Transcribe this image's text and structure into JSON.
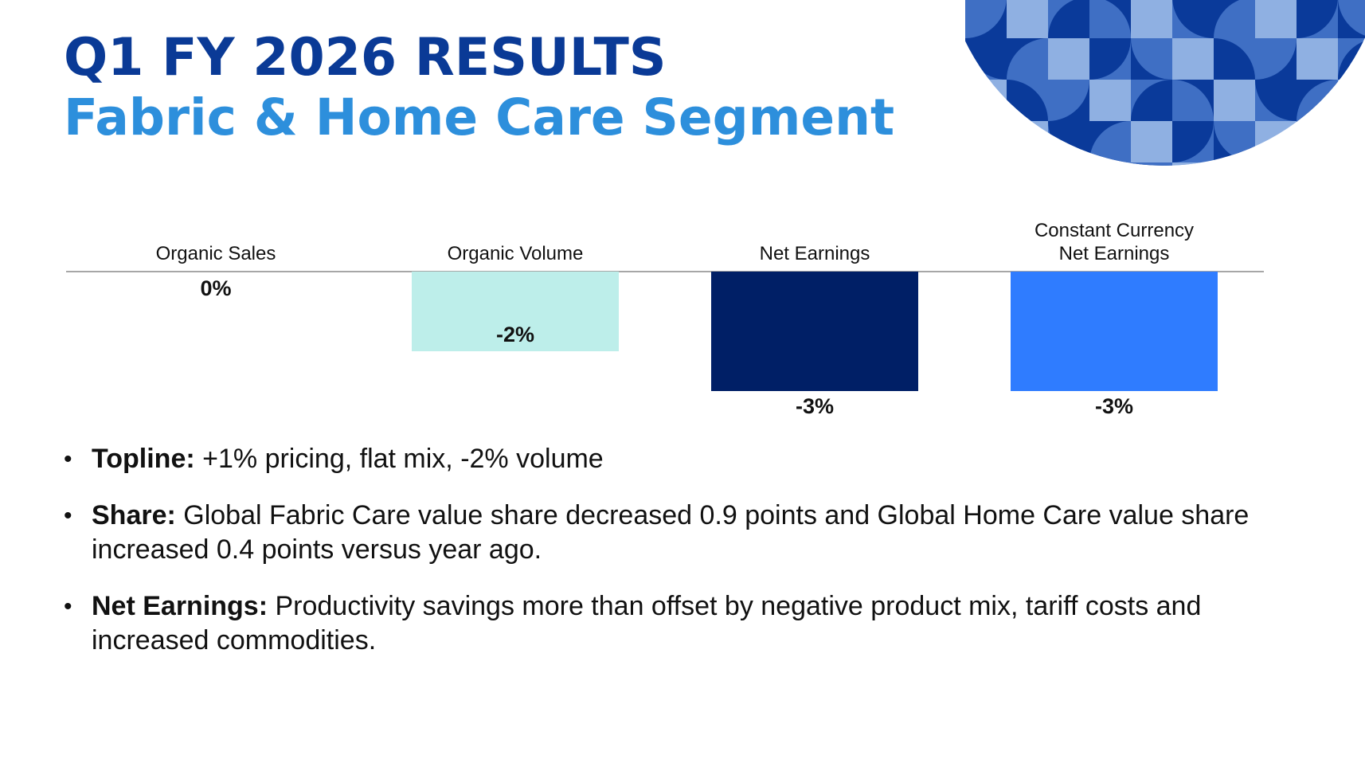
{
  "slide": {
    "title": "Q1 FY 2026 RESULTS",
    "subtitle": "Fabric & Home Care Segment"
  },
  "colors": {
    "title": "#0a3a96",
    "subtitle": "#2d8fdc",
    "baseline": "#8a8a8a",
    "pattern_dark": "#0a3a9a",
    "pattern_mid": "#3f6fc4",
    "pattern_light": "#8fb0e2"
  },
  "chart_data": {
    "type": "bar",
    "title": "",
    "categories": [
      "Organic Sales",
      "Organic Volume",
      "Net Earnings",
      "Constant Currency Net Earnings"
    ],
    "category_lines": [
      [
        "Organic Sales"
      ],
      [
        "Organic Volume"
      ],
      [
        "Net Earnings"
      ],
      [
        "Constant Currency",
        "Net Earnings"
      ]
    ],
    "values": [
      0,
      -2,
      -3,
      -3
    ],
    "value_labels": [
      "0%",
      "-2%",
      "-3%",
      "-3%"
    ],
    "colors": [
      "#ffffff",
      "#bdeeea",
      "#001f66",
      "#2f7cff"
    ],
    "ylim": [
      -3,
      0
    ],
    "xlabel": "",
    "ylabel": "",
    "grid": false,
    "legend": "none"
  },
  "bullets": [
    {
      "lead": "Topline:",
      "text": " +1% pricing, flat mix, -2% volume"
    },
    {
      "lead": "Share:",
      "text": " Global Fabric Care value share decreased 0.9 points and Global Home Care value share increased 0.4 points versus year ago."
    },
    {
      "lead": "Net Earnings:",
      "text": " Productivity savings more than offset by negative product mix, tariff costs and increased commodities."
    }
  ]
}
